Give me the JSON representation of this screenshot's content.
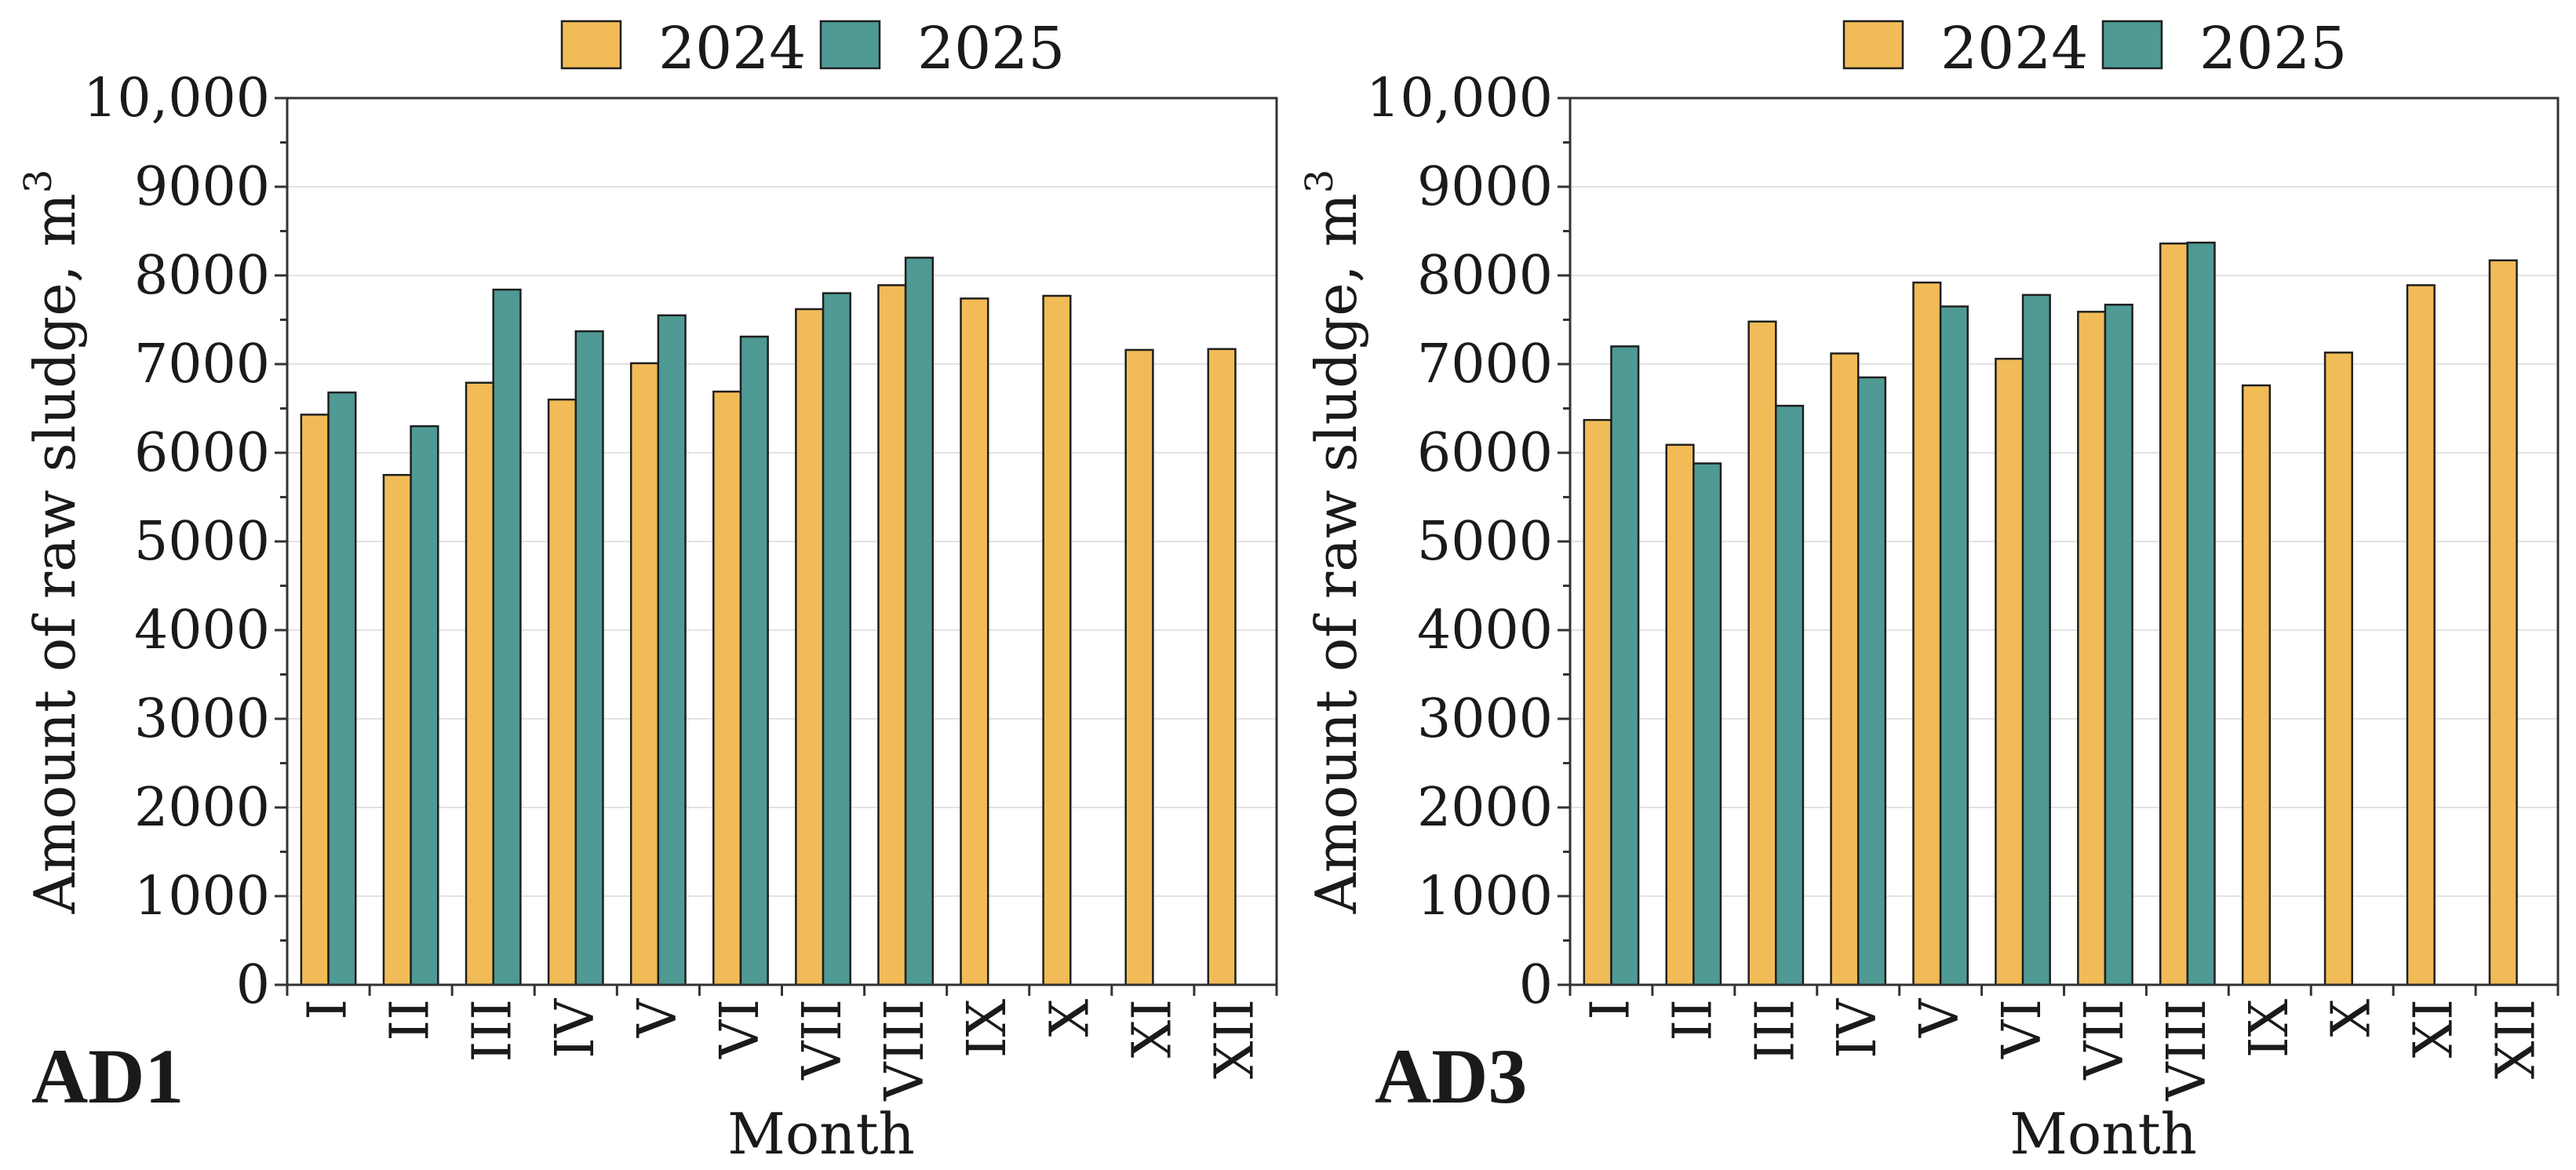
{
  "colors": {
    "2024": "#F1BC57",
    "2025": "#4F9A94"
  },
  "chart_data": [
    {
      "type": "bar",
      "panel_label": "AD1",
      "xlabel": "Month",
      "ylabel": "Amount of raw sludge, m",
      "ylabel_superscript": "3",
      "ylim": [
        0,
        10000
      ],
      "yticks": [
        0,
        1000,
        2000,
        3000,
        4000,
        5000,
        6000,
        7000,
        8000,
        9000,
        10000
      ],
      "ytick_labels": [
        "0",
        "1000",
        "2000",
        "3000",
        "4000",
        "5000",
        "6000",
        "7000",
        "8000",
        "9000",
        "10,000"
      ],
      "grid": true,
      "legend_position": "top",
      "categories": [
        "I",
        "II",
        "III",
        "IV",
        "V",
        "VI",
        "VII",
        "VIII",
        "IX",
        "X",
        "XI",
        "XII"
      ],
      "series": [
        {
          "name": "2024",
          "values": [
            6430,
            5750,
            6790,
            6600,
            7010,
            6690,
            7620,
            7890,
            7740,
            7770,
            7160,
            7170
          ]
        },
        {
          "name": "2025",
          "values": [
            6680,
            6300,
            7840,
            7370,
            7550,
            7310,
            7800,
            8200,
            null,
            null,
            null,
            null
          ]
        }
      ]
    },
    {
      "type": "bar",
      "panel_label": "AD3",
      "xlabel": "Month",
      "ylabel": "Amount of raw sludge, m",
      "ylabel_superscript": "3",
      "ylim": [
        0,
        10000
      ],
      "yticks": [
        0,
        1000,
        2000,
        3000,
        4000,
        5000,
        6000,
        7000,
        8000,
        9000,
        10000
      ],
      "ytick_labels": [
        "0",
        "1000",
        "2000",
        "3000",
        "4000",
        "5000",
        "6000",
        "7000",
        "8000",
        "9000",
        "10,000"
      ],
      "grid": true,
      "legend_position": "top",
      "categories": [
        "I",
        "II",
        "III",
        "IV",
        "V",
        "VI",
        "VII",
        "VIII",
        "IX",
        "X",
        "XI",
        "XII"
      ],
      "series": [
        {
          "name": "2024",
          "values": [
            6370,
            6090,
            7480,
            7120,
            7920,
            7060,
            7590,
            8360,
            6760,
            7130,
            7890,
            8170
          ]
        },
        {
          "name": "2025",
          "values": [
            7200,
            5880,
            6530,
            6850,
            7650,
            7780,
            7670,
            8370,
            null,
            null,
            null,
            null
          ]
        }
      ]
    }
  ]
}
